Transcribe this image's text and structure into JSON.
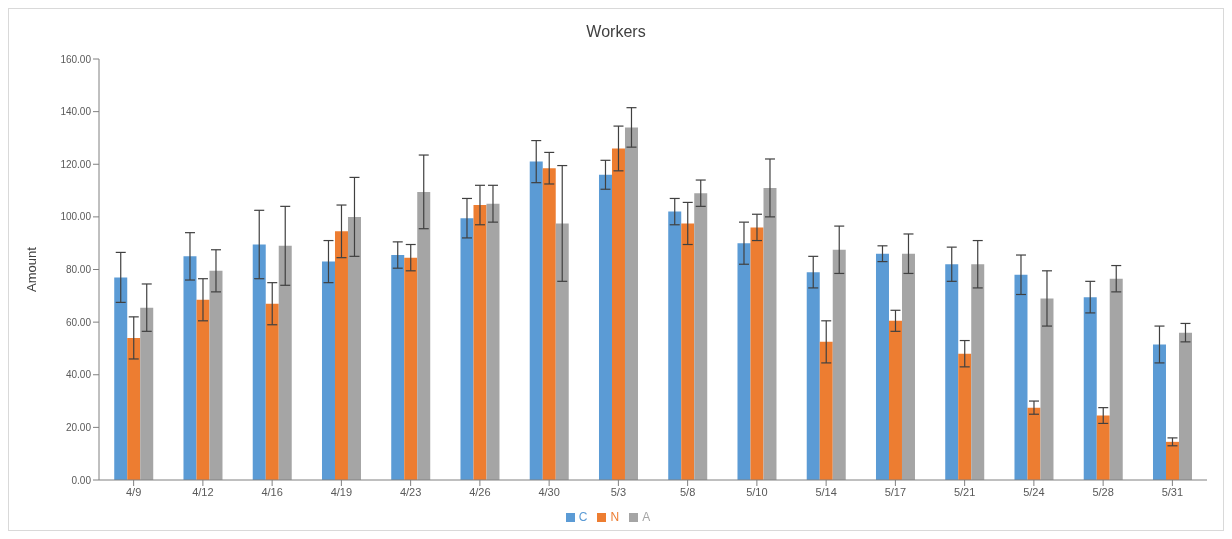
{
  "chart_data": {
    "type": "bar",
    "title": "Workers",
    "ylabel": "Amount",
    "categories": [
      "4/9",
      "4/12",
      "4/16",
      "4/19",
      "4/23",
      "4/26",
      "4/30",
      "5/3",
      "5/8",
      "5/10",
      "5/14",
      "5/17",
      "5/21",
      "5/24",
      "5/28",
      "5/31"
    ],
    "series": [
      {
        "name": "C",
        "color": "#5b9bd5",
        "values": [
          77,
          85,
          89.5,
          83,
          85.5,
          99.5,
          121,
          116,
          102,
          90,
          79,
          86,
          82,
          78,
          69.5,
          51.5
        ],
        "errors": [
          9.5,
          9,
          13,
          8,
          5,
          7.5,
          8,
          5.5,
          5,
          8,
          6,
          3,
          6.5,
          7.5,
          6,
          7
        ]
      },
      {
        "name": "N",
        "color": "#ed7d31",
        "values": [
          54,
          68.5,
          67,
          94.5,
          84.5,
          104.5,
          118.5,
          126,
          97.5,
          96,
          52.5,
          60.5,
          48,
          27.5,
          24.5,
          14.5
        ],
        "errors": [
          8,
          8,
          8,
          10,
          5,
          7.5,
          6,
          8.5,
          8,
          5,
          8,
          4,
          5,
          2.5,
          3,
          1.5
        ]
      },
      {
        "name": "A",
        "color": "#a5a5a5",
        "values": [
          65.5,
          79.5,
          89,
          100,
          109.5,
          105,
          97.5,
          134,
          109,
          111,
          87.5,
          86,
          82,
          69,
          76.5,
          56
        ],
        "errors": [
          9,
          8,
          15,
          15,
          14,
          7,
          22,
          7.5,
          5,
          11,
          9,
          7.5,
          9,
          10.5,
          5,
          3.5
        ]
      }
    ],
    "ylim": [
      0,
      160
    ],
    "yticks": [
      {
        "value": 0,
        "label": "0.00"
      },
      {
        "value": 20,
        "label": "20.00"
      },
      {
        "value": 40,
        "label": "40.00"
      },
      {
        "value": 60,
        "label": "60.00"
      },
      {
        "value": 80,
        "label": "80.00"
      },
      {
        "value": 100,
        "label": "100.00"
      },
      {
        "value": 120,
        "label": "120.00"
      },
      {
        "value": 140,
        "label": "140.00"
      },
      {
        "value": 160,
        "label": "160.00"
      }
    ],
    "legend": "bottom"
  }
}
